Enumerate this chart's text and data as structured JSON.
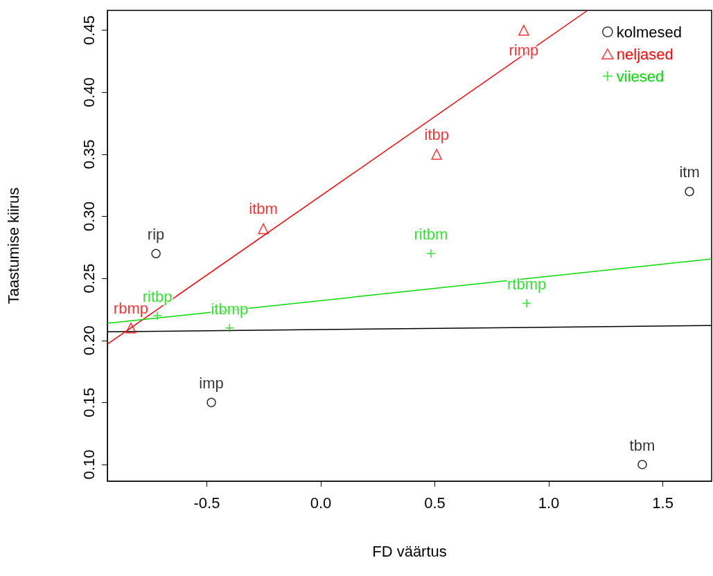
{
  "chart_data": {
    "type": "scatter",
    "xlabel": "FD väärtus",
    "ylabel": "Taastumise kiirus",
    "xlim": [
      -0.936,
      1.714
    ],
    "ylim": [
      0.0866,
      0.466
    ],
    "xticks": [
      {
        "value": -0.5,
        "label": "-0.5"
      },
      {
        "value": 0,
        "label": "0.0"
      },
      {
        "value": 0.5,
        "label": "0.5"
      },
      {
        "value": 1,
        "label": "1.0"
      },
      {
        "value": 1.5,
        "label": "1.5"
      }
    ],
    "yticks": [
      {
        "value": 0.1,
        "label": "0.10"
      },
      {
        "value": 0.15,
        "label": "0.15"
      },
      {
        "value": 0.2,
        "label": "0.20"
      },
      {
        "value": 0.25,
        "label": "0.25"
      },
      {
        "value": 0.3,
        "label": "0.30"
      },
      {
        "value": 0.35,
        "label": "0.35"
      },
      {
        "value": 0.4,
        "label": "0.40"
      },
      {
        "value": 0.45,
        "label": "0.45"
      }
    ],
    "grid": false,
    "legend": "top right",
    "series": [
      {
        "name": "kolmesed",
        "color": "#000000",
        "marker": "circle",
        "x": [
          -0.723,
          -0.48,
          1.617,
          1.41
        ],
        "values": [
          0.27,
          0.15,
          0.32,
          0.1
        ],
        "value_labels": [
          "rip",
          "imp",
          "itm",
          "tbm"
        ]
      },
      {
        "name": "neljased",
        "color": "#ff0000",
        "marker": "triangle",
        "x": [
          -0.833,
          -0.252,
          0.508,
          0.89
        ],
        "values": [
          0.21,
          0.29,
          0.35,
          0.45
        ],
        "value_labels": [
          "rbmp",
          "itbm",
          "itbp",
          "rimp"
        ]
      },
      {
        "name": "viiesed",
        "color": "#00dd00",
        "marker": "cross",
        "x": [
          -0.717,
          -0.4,
          0.483,
          0.903
        ],
        "values": [
          0.22,
          0.21,
          0.27,
          0.23
        ],
        "value_labels": [
          "ritbp",
          "itbmp",
          "ritbm",
          "rtbmp"
        ]
      },
      {
        "type": "line",
        "color": "#000000",
        "marker": "none",
        "x": [
          -0.936,
          1.714
        ],
        "values": [
          0.207,
          0.212
        ]
      },
      {
        "type": "line",
        "color": "#ff0000",
        "marker": "none",
        "x": [
          -0.936,
          1.17
        ],
        "values": [
          0.197,
          0.466
        ]
      },
      {
        "type": "line",
        "color": "#00dd00",
        "marker": "none",
        "x": [
          -0.936,
          1.714
        ],
        "values": [
          0.2138,
          0.2657
        ]
      }
    ]
  }
}
